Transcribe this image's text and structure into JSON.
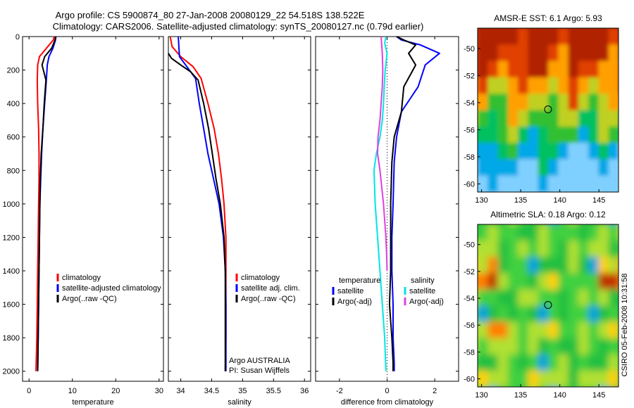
{
  "title_line1": "Argo profile: CS 5900874_80 27-Jan-2008 20080129_22 54.518S 138.522E",
  "title_line2": "Climatology: CARS2006. Satellite-adjusted climatology: synTS_20080127.nc (0.79d earlier)",
  "side_stamp": "CSIRO 05-Feb-2008 10:31:58",
  "chart_data": [
    {
      "type": "line",
      "id": "temperature",
      "xlabel": "temperature",
      "ylabel": "",
      "xlim": [
        -1.5,
        31
      ],
      "ylim": [
        2060,
        0
      ],
      "xticks": [
        0,
        10,
        20,
        30
      ],
      "yticks": [
        0,
        200,
        400,
        600,
        800,
        1000,
        1200,
        1400,
        1600,
        1800,
        2000
      ],
      "legend": [
        "climatology",
        "satellite-adjusted climatology",
        "Argo(..raw -QC)"
      ],
      "legend_position": "lower-right",
      "series": [
        {
          "name": "climatology",
          "color": "#ff0000",
          "x": [
            5.8,
            5.6,
            4.0,
            2.4,
            2.0,
            1.9,
            2.0,
            2.2,
            2.3,
            2.3,
            2.2,
            2.1,
            2.0,
            1.9,
            1.8,
            1.6
          ],
          "y": [
            0,
            20,
            70,
            120,
            170,
            260,
            400,
            550,
            700,
            850,
            1000,
            1200,
            1400,
            1600,
            1800,
            2000
          ]
        },
        {
          "name": "satellite-adjusted climatology",
          "color": "#0000ff",
          "x": [
            6.2,
            6.1,
            5.5,
            4.6,
            4.2,
            4.0,
            3.6,
            3.2,
            2.9,
            2.7,
            2.5,
            2.4,
            2.3,
            2.2,
            2.1,
            2.0
          ],
          "y": [
            0,
            20,
            70,
            120,
            170,
            260,
            400,
            550,
            700,
            850,
            1000,
            1200,
            1400,
            1600,
            1800,
            2000
          ]
        },
        {
          "name": "Argo(..raw -QC)",
          "color": "#000000",
          "x": [
            6.1,
            6.0,
            5.2,
            3.6,
            3.0,
            3.9,
            3.5,
            3.2,
            2.8,
            2.6,
            2.5,
            2.4,
            2.3,
            2.2,
            2.1,
            2.0
          ],
          "y": [
            0,
            20,
            70,
            120,
            170,
            260,
            400,
            550,
            700,
            850,
            1000,
            1200,
            1400,
            1600,
            1800,
            2000
          ]
        }
      ]
    },
    {
      "type": "line",
      "id": "salinity",
      "xlabel": "salinity",
      "ylabel": "",
      "xlim": [
        33.8,
        36.1
      ],
      "ylim": [
        2060,
        0
      ],
      "xticks": [
        34,
        34.5,
        35,
        35.5,
        36
      ],
      "yticks": [
        0,
        200,
        400,
        600,
        800,
        1000,
        1200,
        1400,
        1600,
        1800,
        2000
      ],
      "legend": [
        "climatology",
        "satellite adj. clim.",
        "Argo(..raw -QC)"
      ],
      "legend_position": "lower-right",
      "annotation": [
        "Argo AUSTRALIA",
        "PI: Susan Wijffels"
      ],
      "series": [
        {
          "name": "climatology",
          "color": "#ff0000",
          "x": [
            33.83,
            33.86,
            34.0,
            34.2,
            34.33,
            34.44,
            34.54,
            34.61,
            34.66,
            34.7,
            34.73,
            34.73,
            34.73,
            34.73,
            34.72
          ],
          "y": [
            0,
            60,
            120,
            180,
            250,
            400,
            550,
            700,
            850,
            1000,
            1200,
            1400,
            1600,
            1800,
            2000
          ]
        },
        {
          "name": "satellite adj. clim.",
          "color": "#0000ff",
          "x": [
            33.96,
            33.97,
            33.98,
            34.1,
            34.24,
            34.3,
            34.37,
            34.44,
            34.53,
            34.62,
            34.69,
            34.72,
            34.73,
            34.73,
            34.73,
            34.73
          ],
          "y": [
            0,
            60,
            120,
            180,
            250,
            400,
            550,
            700,
            850,
            1000,
            1200,
            1400,
            1600,
            1800,
            1950,
            2000
          ]
        },
        {
          "name": "Argo(..raw -QC)",
          "color": "#000000",
          "x": [
            33.8,
            33.85,
            34.0,
            34.16,
            34.28,
            34.37,
            34.45,
            34.51,
            34.57,
            34.64,
            34.7,
            34.72,
            34.72,
            34.72,
            34.72
          ],
          "y": [
            100,
            130,
            170,
            210,
            260,
            400,
            550,
            700,
            850,
            1000,
            1200,
            1400,
            1600,
            1800,
            2000
          ]
        }
      ]
    },
    {
      "type": "line",
      "id": "difference",
      "xlabel": "difference from climatology",
      "ylabel": "",
      "xlim": [
        -3,
        3
      ],
      "ylim": [
        2060,
        0
      ],
      "xticks": [
        -2,
        0,
        2
      ],
      "yticks": [
        0,
        200,
        400,
        600,
        800,
        1000,
        1200,
        1400,
        1600,
        1800,
        2000
      ],
      "legend": [
        "temperature",
        "satellite",
        "Argo(-adj)",
        "salinity",
        "satellite",
        "Argo(-adj)"
      ],
      "legend_position": "lower-right",
      "series": [
        {
          "name": "temperature satellite",
          "color": "#0000ff",
          "x": [
            0.4,
            0.6,
            1.4,
            2.2,
            1.6,
            1.3,
            0.6,
            0.4,
            0.3,
            0.25,
            0.2,
            0.2,
            0.25,
            0.25,
            0.3,
            0.3
          ],
          "y": [
            0,
            20,
            50,
            100,
            170,
            300,
            450,
            600,
            750,
            1000,
            1200,
            1400,
            1600,
            1800,
            1950,
            2000
          ]
        },
        {
          "name": "temperature Argo(-adj)",
          "color": "#000000",
          "x": [
            0.4,
            0.7,
            1.2,
            0.9,
            1.2,
            0.7,
            0.6,
            0.3,
            0.2,
            0.15,
            0.15,
            0.15,
            0.1,
            0.2,
            0.25,
            0.25
          ],
          "y": [
            0,
            20,
            50,
            100,
            170,
            300,
            450,
            600,
            750,
            1000,
            1200,
            1400,
            1600,
            1800,
            1950,
            2000
          ]
        },
        {
          "name": "salinity satellite",
          "color": "#00e5e5",
          "x": [
            -0.05,
            -0.1,
            0.0,
            -0.08,
            -0.12,
            -0.15,
            -0.2,
            -0.3,
            -0.45,
            -0.55,
            -0.5,
            -0.4,
            -0.3,
            -0.2,
            -0.1,
            -0.05
          ],
          "y": [
            0,
            40,
            100,
            200,
            300,
            400,
            500,
            600,
            700,
            800,
            1000,
            1200,
            1400,
            1600,
            1800,
            2000
          ]
        },
        {
          "name": "salinity Argo(-adj)",
          "color": "#e040e0",
          "x": [
            -0.25,
            -0.2,
            -0.18,
            -0.2,
            -0.25,
            -0.3,
            -0.38,
            -0.4,
            -0.3,
            -0.15,
            -0.05,
            -0.02,
            0.0
          ],
          "y": [
            0,
            100,
            200,
            300,
            400,
            500,
            600,
            700,
            800,
            1000,
            1200,
            1300,
            1400
          ]
        }
      ]
    },
    {
      "type": "heatmap",
      "id": "sst_map",
      "title": "AMSR-E SST: 6.1 Argo: 5.93",
      "xlim": [
        129.5,
        147.5
      ],
      "ylim": [
        -60.6,
        -48.5
      ],
      "xticks": [
        130,
        135,
        140,
        145
      ],
      "yticks": [
        -50,
        -52,
        -54,
        -56,
        -58,
        -60
      ],
      "marker": {
        "lon": 138.5,
        "lat": -54.5
      },
      "color_stops": [
        "#7fd0ff",
        "#00a8e8",
        "#00c060",
        "#30c030",
        "#c0d020",
        "#ffa000",
        "#e04000",
        "#b02000"
      ]
    },
    {
      "type": "heatmap",
      "id": "sla_map",
      "title": "Altimetric SLA: 0.18 Argo: 0.12",
      "xlim": [
        129.5,
        147.5
      ],
      "ylim": [
        -60.6,
        -48.5
      ],
      "xticks": [
        130,
        135,
        140,
        145
      ],
      "yticks": [
        -50,
        -52,
        -54,
        -56,
        -58,
        -60
      ],
      "marker": {
        "lon": 138.5,
        "lat": -54.5
      },
      "color_stops": [
        "#00a0e0",
        "#20c040",
        "#40d040",
        "#b0e030",
        "#ffd000",
        "#ff8000",
        "#c03000"
      ]
    }
  ]
}
